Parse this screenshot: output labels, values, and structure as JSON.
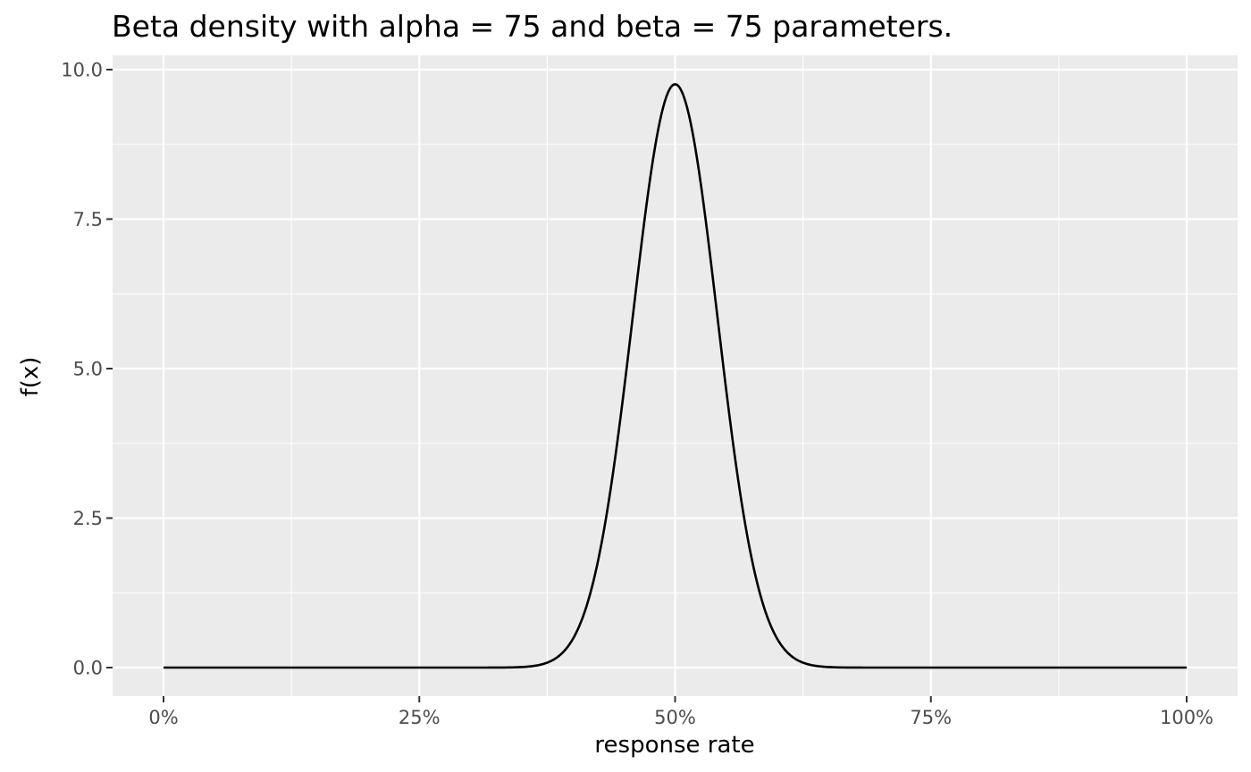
{
  "chart_data": {
    "type": "line",
    "title": "Beta density with alpha = 75 and beta = 75 parameters.",
    "xlabel": "response rate",
    "ylabel": "f(x)",
    "distribution": "beta",
    "alpha": 75,
    "beta": 75,
    "xlim": [
      0,
      1
    ],
    "ylim": [
      0,
      10
    ],
    "x_ticks": [
      0,
      0.25,
      0.5,
      0.75,
      1.0
    ],
    "x_tick_labels": [
      "0%",
      "25%",
      "50%",
      "75%",
      "100%"
    ],
    "y_ticks": [
      0,
      2.5,
      5,
      7.5,
      10
    ],
    "y_tick_labels": [
      "0.0",
      "2.5",
      "5.0",
      "7.5",
      "10.0"
    ],
    "grid": true,
    "series": [
      {
        "x": [
          0.0,
          0.3,
          0.34,
          0.36,
          0.38,
          0.4,
          0.42,
          0.44,
          0.46,
          0.48,
          0.5,
          0.52,
          0.54,
          0.56,
          0.58,
          0.6,
          0.62,
          0.64,
          0.66,
          0.7,
          1.0
        ],
        "y": [
          0.0,
          0.0,
          0.01,
          0.03,
          0.13,
          0.48,
          1.43,
          3.34,
          6.09,
          8.67,
          9.76,
          8.67,
          6.09,
          3.34,
          1.43,
          0.48,
          0.13,
          0.03,
          0.01,
          0.0,
          0.0
        ],
        "color": "#000000"
      }
    ],
    "panel_background": "#ebebeb",
    "grid_color": "#ffffff"
  }
}
